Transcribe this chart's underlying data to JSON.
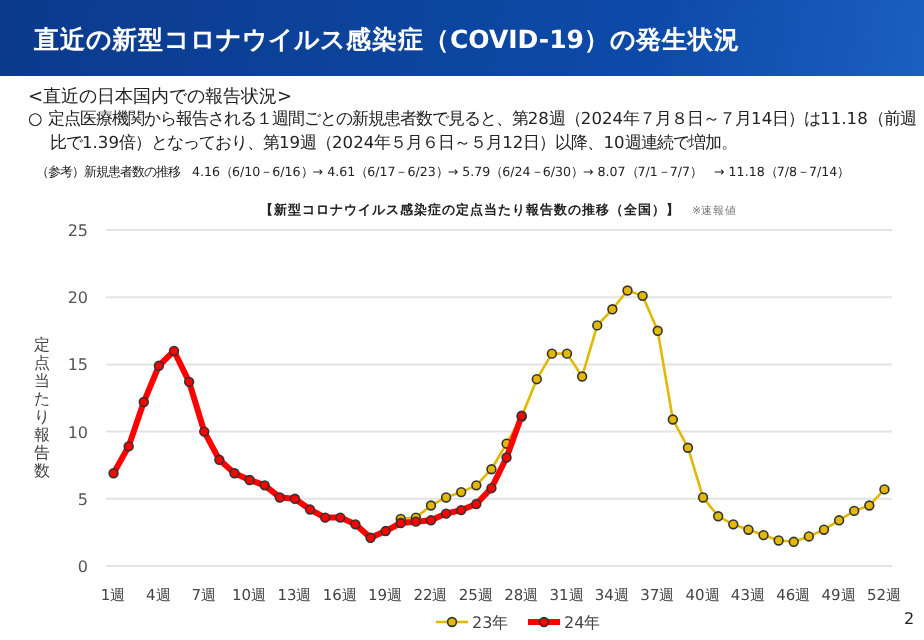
{
  "chart_data": {
    "type": "line",
    "title": "直近の新型コロナウイルス感染症（COVID-19）の発生状況",
    "subtitle": "<直近の日本国内での報告状況>",
    "annotations": [
      "○ 定点医療機関から報告される１週間ごとの新規患者数で見ると、第28週（2024年７月８日～７月14日）は11.18（前週比で1.39倍）となっており、第19週（2024年５月６日～５月12日）以降、10週連続で増加。",
      "（参考）新規患者数の推移　4.16（6/10－6/16）→ 4.61（6/17－6/23）→ 5.79（6/24－6/30）→ 8.07（7/1－7/7）　→ 11.18（7/8－7/14）",
      "【新型コロナウイルス感染症の定点当たり報告数の推移（全国）】",
      "※速報値",
      "2"
    ],
    "ylabel": "定点当たり報告数",
    "categories": [
      "1週",
      null,
      null,
      "4週",
      null,
      null,
      "7週",
      null,
      null,
      "10週",
      null,
      null,
      "13週",
      null,
      null,
      "16週",
      null,
      null,
      "19週",
      null,
      null,
      "22週",
      null,
      null,
      "25週",
      null,
      null,
      "28週",
      null,
      null,
      "31週",
      null,
      null,
      "34週",
      null,
      null,
      "37週",
      null,
      null,
      "40週",
      null,
      null,
      "43週",
      null,
      null,
      "46週",
      null,
      null,
      "49週",
      null,
      null,
      "52週"
    ],
    "series": [
      {
        "name": "23年",
        "color": "#e2b800",
        "values": [
          null,
          null,
          null,
          null,
          null,
          null,
          null,
          null,
          null,
          null,
          null,
          null,
          null,
          null,
          null,
          null,
          null,
          null,
          null,
          3.5,
          3.6,
          4.5,
          5.1,
          5.5,
          6.0,
          7.2,
          9.1,
          11.1,
          13.9,
          15.8,
          15.8,
          14.1,
          17.9,
          19.1,
          20.5,
          20.1,
          17.5,
          10.9,
          8.8,
          5.1,
          3.7,
          3.1,
          2.7,
          2.3,
          1.9,
          1.8,
          2.2,
          2.7,
          3.4,
          4.1,
          4.5,
          5.7
        ]
      },
      {
        "name": "24年",
        "color": "#ff0000",
        "values": [
          6.9,
          8.9,
          12.2,
          14.9,
          16.0,
          13.7,
          10.0,
          7.9,
          6.9,
          6.4,
          6.0,
          5.1,
          5.0,
          4.2,
          3.6,
          3.6,
          3.1,
          2.1,
          2.6,
          3.2,
          3.3,
          3.4,
          3.9,
          4.16,
          4.61,
          5.79,
          8.07,
          11.18,
          null,
          null,
          null,
          null,
          null,
          null,
          null,
          null,
          null,
          null,
          null,
          null,
          null,
          null,
          null,
          null,
          null,
          null,
          null,
          null,
          null,
          null,
          null,
          null
        ]
      }
    ],
    "ylim": [
      0,
      25
    ],
    "yticks": [
      0,
      5,
      10,
      15,
      20,
      25
    ],
    "grid": "y",
    "legend": "bottom",
    "marker": "circle"
  }
}
